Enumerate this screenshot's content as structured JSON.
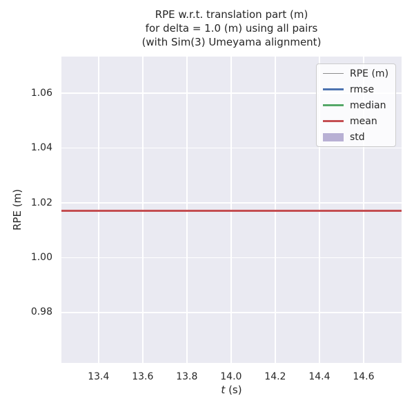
{
  "chart_data": {
    "type": "line",
    "title_lines": [
      "RPE w.r.t. translation part (m)",
      "for delta = 1.0 (m) using all pairs",
      "(with Sim(3) Umeyama alignment)"
    ],
    "xlabel_math": "t",
    "xlabel_units": " (s)",
    "ylabel": "RPE (m)",
    "xlim": [
      13.232,
      14.772
    ],
    "ylim": [
      0.9616,
      1.0734
    ],
    "xtick_labels": [
      "13.4",
      "13.6",
      "13.8",
      "14.0",
      "14.2",
      "14.4",
      "14.6"
    ],
    "ytick_labels": [
      "0.98",
      "1.00",
      "1.02",
      "1.04",
      "1.06"
    ],
    "grid": true,
    "background_color": "#eaeaf2",
    "grid_color": "#ffffff",
    "text_color": "#262626",
    "legend_position": "top-right",
    "series": [
      {
        "name": "RPE (m)",
        "type": "hline",
        "color": "#8c8c8c",
        "linewidth": 1.5,
        "value": 1.0171
      },
      {
        "name": "rmse",
        "type": "hline",
        "color": "#4c72b0",
        "linewidth": 2.5,
        "value": 1.0171
      },
      {
        "name": "median",
        "type": "hline",
        "color": "#55a868",
        "linewidth": 2.5,
        "value": 1.0171
      },
      {
        "name": "mean",
        "type": "hline",
        "color": "#c44e52",
        "linewidth": 2.5,
        "value": 1.0171
      },
      {
        "name": "std",
        "type": "band",
        "color": "#8172b2",
        "alpha": 0.55,
        "center": 1.0171,
        "halfwidth": 0.0
      }
    ]
  }
}
